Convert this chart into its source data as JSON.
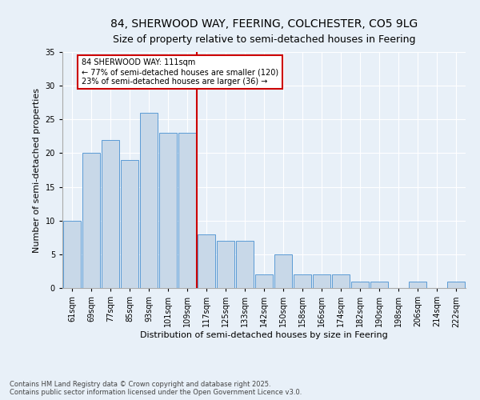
{
  "title": "84, SHERWOOD WAY, FEERING, COLCHESTER, CO5 9LG",
  "subtitle": "Size of property relative to semi-detached houses in Feering",
  "xlabel": "Distribution of semi-detached houses by size in Feering",
  "ylabel": "Number of semi-detached properties",
  "categories": [
    "61sqm",
    "69sqm",
    "77sqm",
    "85sqm",
    "93sqm",
    "101sqm",
    "109sqm",
    "117sqm",
    "125sqm",
    "133sqm",
    "142sqm",
    "150sqm",
    "158sqm",
    "166sqm",
    "174sqm",
    "182sqm",
    "190sqm",
    "198sqm",
    "206sqm",
    "214sqm",
    "222sqm"
  ],
  "values": [
    10,
    20,
    22,
    19,
    26,
    23,
    23,
    8,
    7,
    7,
    2,
    5,
    2,
    2,
    2,
    1,
    1,
    0,
    1,
    0,
    1
  ],
  "bar_color": "#c8d8e8",
  "bar_edge_color": "#5b9bd5",
  "marker_bin_index": 6,
  "marker_line_color": "#cc0000",
  "annotation_text": "84 SHERWOOD WAY: 111sqm\n← 77% of semi-detached houses are smaller (120)\n23% of semi-detached houses are larger (36) →",
  "annotation_box_color": "#ffffff",
  "annotation_box_edge_color": "#cc0000",
  "background_color": "#e8f0f8",
  "ylim": [
    0,
    35
  ],
  "yticks": [
    0,
    5,
    10,
    15,
    20,
    25,
    30,
    35
  ],
  "footnote": "Contains HM Land Registry data © Crown copyright and database right 2025.\nContains public sector information licensed under the Open Government Licence v3.0.",
  "title_fontsize": 10,
  "xlabel_fontsize": 8,
  "ylabel_fontsize": 8,
  "tick_fontsize": 7,
  "annot_fontsize": 7,
  "footnote_fontsize": 6
}
